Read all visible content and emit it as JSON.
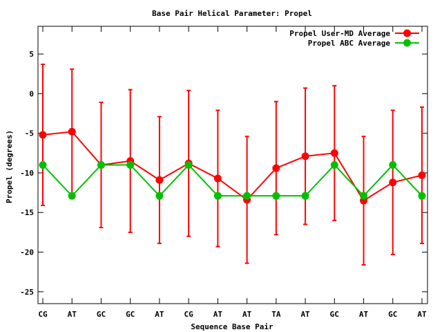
{
  "chart_data": {
    "type": "line",
    "title": "Base Pair Helical Parameter: Propel",
    "xlabel": "Sequence Base Pair",
    "ylabel": "Propel (degrees)",
    "categories": [
      "CG",
      "AT",
      "GC",
      "GC",
      "AT",
      "CG",
      "AT",
      "AT",
      "TA",
      "AT",
      "GC",
      "AT",
      "GC",
      "AT"
    ],
    "ylim": [
      -26.5,
      8.5
    ],
    "yticks": [
      5,
      0,
      -5,
      -10,
      -15,
      -20,
      -25
    ],
    "grid": false,
    "legend_position": "top-right",
    "series": [
      {
        "name": "Propel User-MD Average",
        "color": "#ff0000",
        "values": [
          -5.2,
          -4.8,
          -9.0,
          -8.5,
          -10.9,
          -8.8,
          -10.7,
          -13.4,
          -9.4,
          -7.9,
          -7.5,
          -13.5,
          -11.2,
          -10.3
        ],
        "error": [
          8.9,
          7.9,
          7.9,
          9.0,
          8.0,
          9.2,
          8.6,
          8.0,
          8.4,
          8.6,
          8.5,
          8.1,
          9.1,
          8.6
        ]
      },
      {
        "name": "Propel ABC Average",
        "color": "#00c000",
        "values": [
          -9.0,
          -12.9,
          -9.0,
          -9.0,
          -12.9,
          -9.0,
          -12.9,
          -12.9,
          -12.9,
          -12.9,
          -9.0,
          -12.9,
          -9.0,
          -12.9
        ]
      }
    ]
  }
}
